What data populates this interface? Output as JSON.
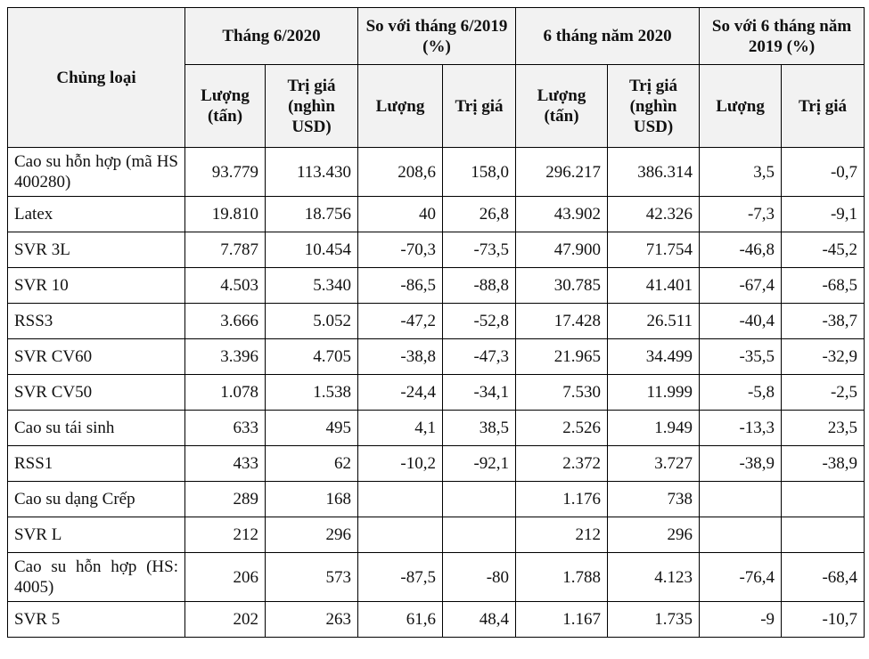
{
  "table": {
    "header": {
      "product": "Chủng loại",
      "groups": [
        "Tháng 6/2020",
        "So với tháng 6/2019 (%)",
        "6 tháng năm 2020",
        "So với 6 tháng năm 2019 (%)"
      ],
      "subheaders": [
        "Lượng (tấn)",
        "Trị giá (nghìn USD)",
        "Lượng",
        "Trị giá",
        "Lượng (tấn)",
        "Trị giá (nghìn USD)",
        "Lượng",
        "Trị giá"
      ]
    },
    "rows": [
      [
        "Cao su hỗn hợp (mã HS 400280)",
        "93.779",
        "113.430",
        "208,6",
        "158,0",
        "296.217",
        "386.314",
        "3,5",
        "-0,7"
      ],
      [
        "Latex",
        "19.810",
        "18.756",
        "40",
        "26,8",
        "43.902",
        "42.326",
        "-7,3",
        "-9,1"
      ],
      [
        "SVR 3L",
        "7.787",
        "10.454",
        "-70,3",
        "-73,5",
        "47.900",
        "71.754",
        "-46,8",
        "-45,2"
      ],
      [
        "SVR 10",
        "4.503",
        "5.340",
        "-86,5",
        "-88,8",
        "30.785",
        "41.401",
        "-67,4",
        "-68,5"
      ],
      [
        "RSS3",
        "3.666",
        "5.052",
        "-47,2",
        "-52,8",
        "17.428",
        "26.511",
        "-40,4",
        "-38,7"
      ],
      [
        "SVR CV60",
        "3.396",
        "4.705",
        "-38,8",
        "-47,3",
        "21.965",
        "34.499",
        "-35,5",
        "-32,9"
      ],
      [
        "SVR CV50",
        "1.078",
        "1.538",
        "-24,4",
        "-34,1",
        "7.530",
        "11.999",
        "-5,8",
        "-2,5"
      ],
      [
        "Cao su tái sinh",
        "633",
        "495",
        "4,1",
        "38,5",
        "2.526",
        "1.949",
        "-13,3",
        "23,5"
      ],
      [
        "RSS1",
        "433",
        "62",
        "-10,2",
        "-92,1",
        "2.372",
        "3.727",
        "-38,9",
        "-38,9"
      ],
      [
        "Cao su dạng Crếp",
        "289",
        "168",
        null,
        null,
        "1.176",
        "738",
        null,
        null
      ],
      [
        "SVR L",
        "212",
        "296",
        null,
        null,
        "212",
        "296",
        null,
        null
      ],
      [
        "Cao su hỗn hợp (HS: 4005)",
        "206",
        "573",
        "-87,5",
        "-80",
        "1.788",
        "4.123",
        "-76,4",
        "-68,4"
      ],
      [
        "SVR 5",
        "202",
        "263",
        "61,6",
        "48,4",
        "1.167",
        "1.735",
        "-9",
        "-10,7"
      ]
    ]
  }
}
